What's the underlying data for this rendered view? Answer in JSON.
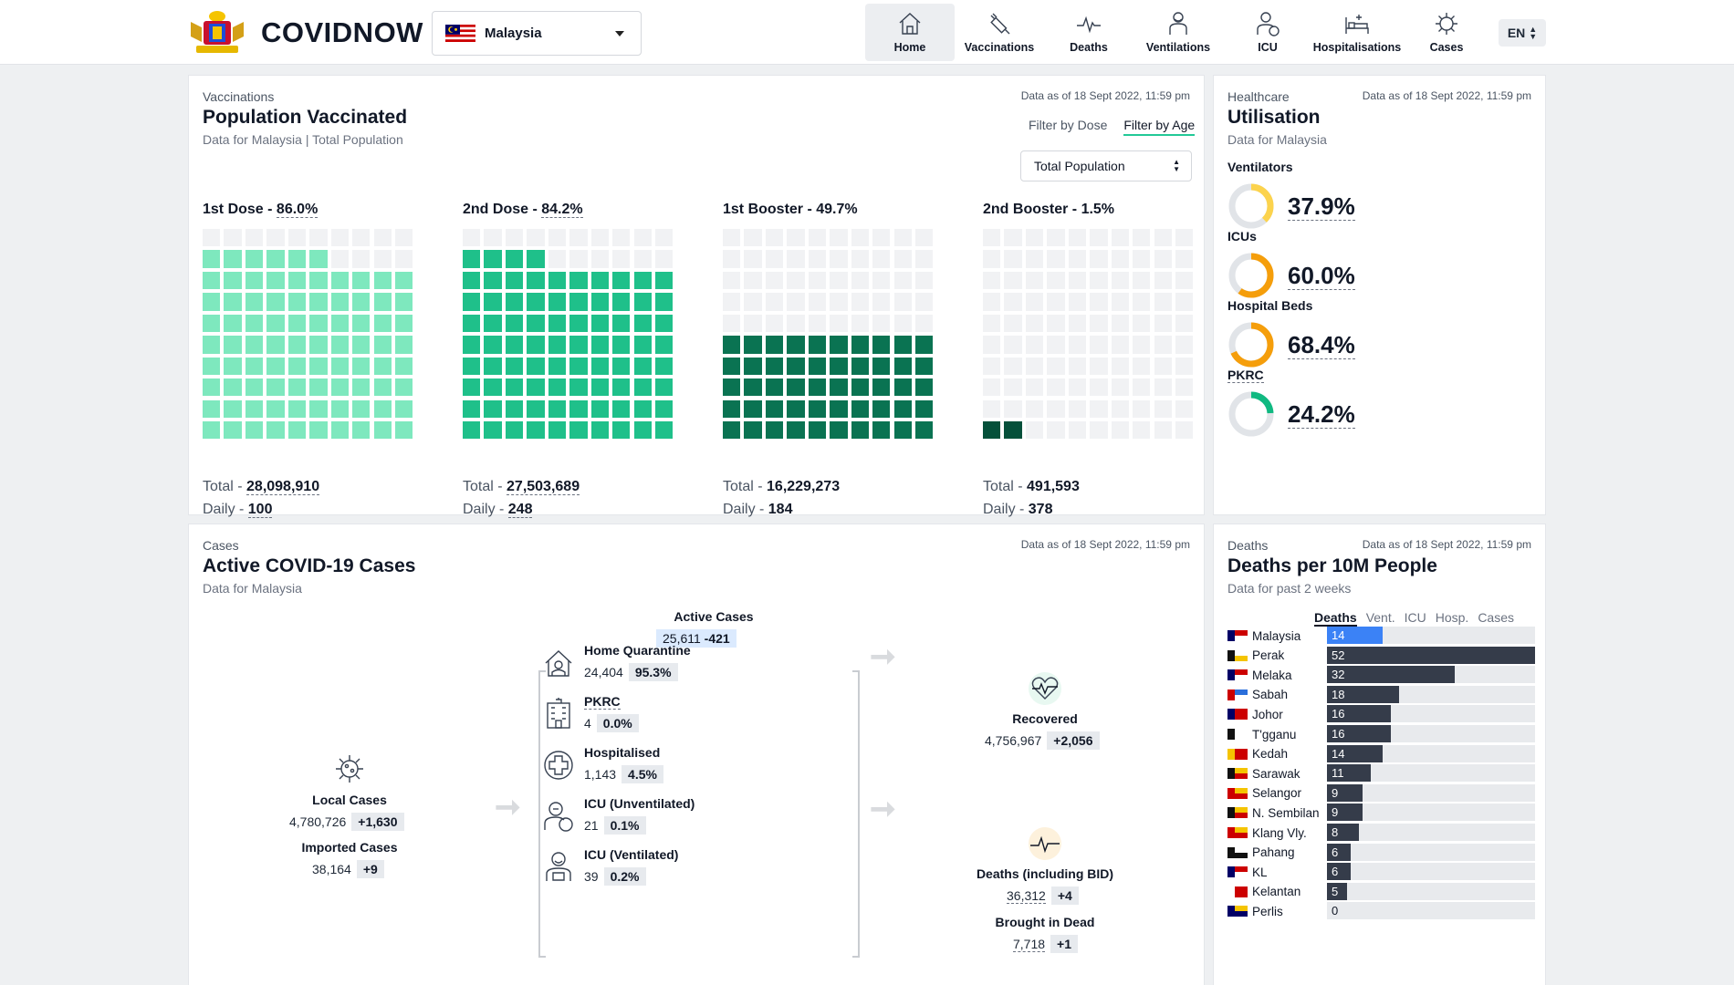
{
  "header": {
    "brand": "COVIDNOW",
    "country": "Malaysia",
    "nav": [
      {
        "label": "Home",
        "icon": "home-icon",
        "active": true
      },
      {
        "label": "Vaccinations",
        "icon": "syringe-icon",
        "active": false
      },
      {
        "label": "Deaths",
        "icon": "pulse-icon",
        "active": false
      },
      {
        "label": "Ventilations",
        "icon": "ventilator-icon",
        "active": false
      },
      {
        "label": "ICU",
        "icon": "icu-icon",
        "active": false
      },
      {
        "label": "Hospitalisations",
        "icon": "hospital-bed-icon",
        "active": false
      },
      {
        "label": "Cases",
        "icon": "virus-icon",
        "active": false
      }
    ],
    "language": "EN"
  },
  "vaccination": {
    "eyebrow": "Vaccinations",
    "title": "Population Vaccinated",
    "subtitle_a": "Data for Malaysia",
    "subtitle_b": "Total Population",
    "as_of": "Data as of 18 Sept 2022, 11:59 pm",
    "filter_dose": "Filter by Dose",
    "filter_age": "Filter by Age",
    "population_select": "Total Population",
    "total_prefix": "Total - ",
    "daily_prefix": "Daily - ",
    "doses": [
      {
        "name": "1st Dose - ",
        "pct": "86.0%",
        "fraction": 0.86,
        "color": "#7ee8be",
        "total": "28,098,910",
        "daily": "100",
        "dotted": true
      },
      {
        "name": "2nd Dose - ",
        "pct": "84.2%",
        "fraction": 0.842,
        "color": "#1fc08a",
        "total": "27,503,689",
        "daily": "248",
        "dotted": true
      },
      {
        "name": "1st Booster - ",
        "pct": "49.7%",
        "fraction": 0.497,
        "color": "#0a7352",
        "total": "16,229,273",
        "daily": "184",
        "dotted": false
      },
      {
        "name": "2nd Booster - ",
        "pct": "1.5%",
        "fraction": 0.015,
        "color": "#05503a",
        "total": "491,593",
        "daily": "378",
        "dotted": false
      }
    ]
  },
  "healthcare": {
    "eyebrow": "Healthcare",
    "title": "Utilisation",
    "subtitle": "Data for Malaysia",
    "as_of": "Data as of 18 Sept 2022, 11:59 pm",
    "items": [
      {
        "label": "Ventilators",
        "value": "37.9%",
        "fraction": 0.379,
        "color": "#fcd34d"
      },
      {
        "label": "ICUs",
        "value": "60.0%",
        "fraction": 0.6,
        "color": "#f59e0b"
      },
      {
        "label": "Hospital Beds",
        "value": "68.4%",
        "fraction": 0.684,
        "color": "#f59e0b"
      },
      {
        "label": "PKRC",
        "value": "24.2%",
        "fraction": 0.242,
        "color": "#10b981"
      }
    ]
  },
  "cases": {
    "eyebrow": "Cases",
    "title": "Active COVID-19 Cases",
    "subtitle": "Data for Malaysia",
    "as_of": "Data as of 18 Sept 2022, 11:59 pm",
    "active": {
      "label": "Active Cases",
      "value": "25,611",
      "delta": "-421"
    },
    "local": {
      "label": "Local Cases",
      "value": "4,780,726",
      "delta": "+1,630"
    },
    "imported": {
      "label": "Imported Cases",
      "value": "38,164",
      "delta": "+9"
    },
    "breakdown": [
      {
        "label": "Home Quarantine",
        "value": "24,404",
        "pct": "95.3%",
        "icon": "home-quarantine-icon"
      },
      {
        "label": "PKRC",
        "value": "4",
        "pct": "0.0%",
        "icon": "pkrc-building-icon"
      },
      {
        "label": "Hospitalised",
        "value": "1,143",
        "pct": "4.5%",
        "icon": "hospital-cross-icon"
      },
      {
        "label": "ICU (Unventilated)",
        "value": "21",
        "pct": "0.1%",
        "icon": "icu-doctor-icon"
      },
      {
        "label": "ICU (Ventilated)",
        "value": "39",
        "pct": "0.2%",
        "icon": "ventilated-patient-icon"
      }
    ],
    "recovered": {
      "label": "Recovered",
      "value": "4,756,967",
      "delta": "+2,056"
    },
    "deaths": {
      "label": "Deaths (including BID)",
      "value": "36,312",
      "delta": "+4"
    },
    "bid": {
      "label": "Brought in Dead",
      "value": "7,718",
      "delta": "+1"
    }
  },
  "deaths10m": {
    "eyebrow": "Deaths",
    "title": "Deaths per 10M People",
    "subtitle": "Data for past 2 weeks",
    "as_of": "Data as of 18 Sept 2022, 11:59 pm",
    "tabs": [
      "Deaths",
      "Vent.",
      "ICU",
      "Hosp.",
      "Cases"
    ],
    "max": 52,
    "rows": [
      {
        "state": "Malaysia",
        "value": 14,
        "flag": "malaysia-flag-icon"
      },
      {
        "state": "Perak",
        "value": 52,
        "flag": "perak-flag-icon"
      },
      {
        "state": "Melaka",
        "value": 32,
        "flag": "melaka-flag-icon"
      },
      {
        "state": "Sabah",
        "value": 18,
        "flag": "sabah-flag-icon"
      },
      {
        "state": "Johor",
        "value": 16,
        "flag": "johor-flag-icon"
      },
      {
        "state": "T'gganu",
        "value": 16,
        "flag": "terengganu-flag-icon"
      },
      {
        "state": "Kedah",
        "value": 14,
        "flag": "kedah-flag-icon"
      },
      {
        "state": "Sarawak",
        "value": 11,
        "flag": "sarawak-flag-icon"
      },
      {
        "state": "Selangor",
        "value": 9,
        "flag": "selangor-flag-icon"
      },
      {
        "state": "N. Sembilan",
        "value": 9,
        "flag": "negeri-sembilan-flag-icon"
      },
      {
        "state": "Klang Vly.",
        "value": 8,
        "flag": "klang-valley-flag-icon"
      },
      {
        "state": "Pahang",
        "value": 6,
        "flag": "pahang-flag-icon"
      },
      {
        "state": "KL",
        "value": 6,
        "flag": "kl-flag-icon"
      },
      {
        "state": "Kelantan",
        "value": 5,
        "flag": "kelantan-flag-icon"
      },
      {
        "state": "Perlis",
        "value": 0,
        "flag": "perlis-flag-icon"
      }
    ]
  }
}
